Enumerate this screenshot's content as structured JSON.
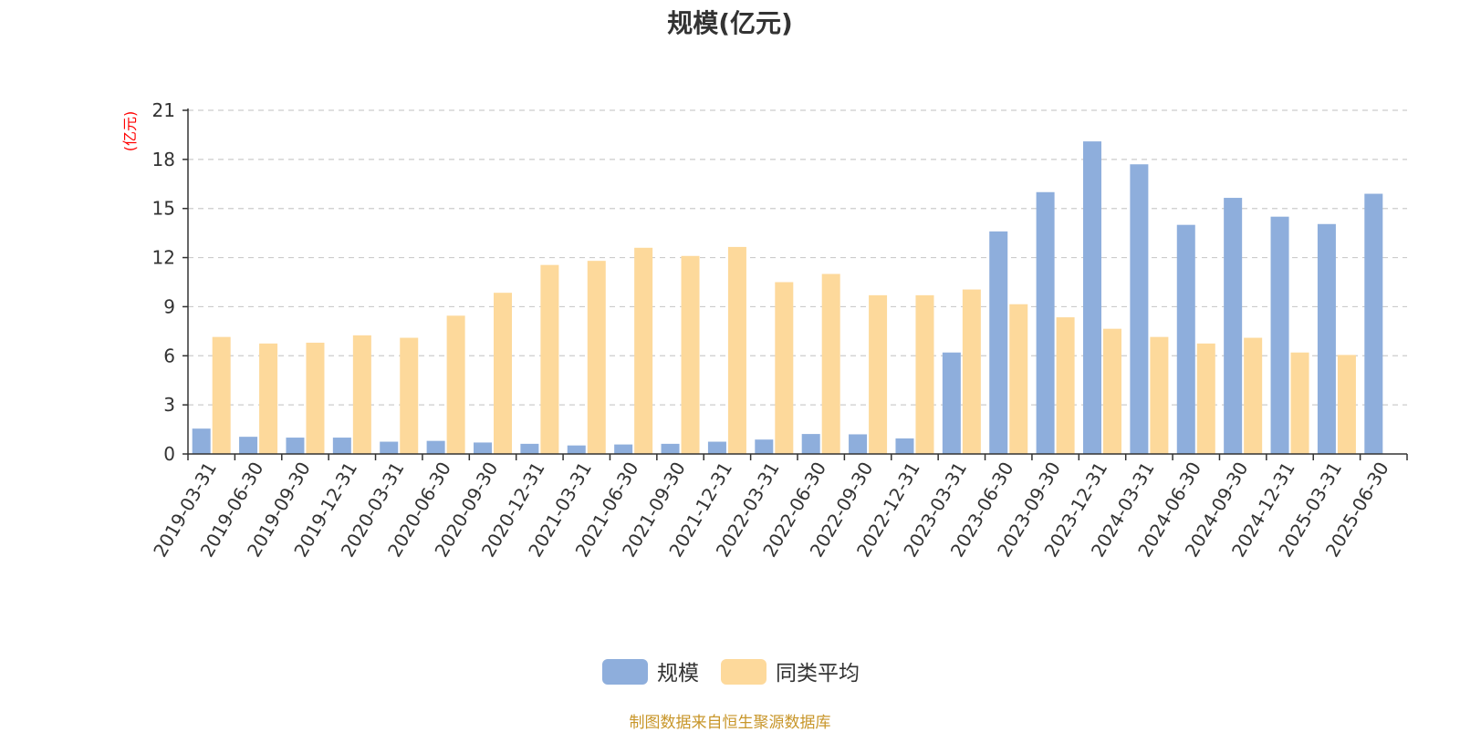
{
  "colors": {
    "series_0": "#8eaedc",
    "series_1": "#fdd99b",
    "unit_label": "#ff0000",
    "footer": "#c8962a",
    "axis": "#333333",
    "grid": "#cccccc"
  },
  "footer": {
    "source": "制图数据来自恒生聚源数据库"
  },
  "chart_data": {
    "type": "bar",
    "title": "规模(亿元)",
    "ylabel": "(亿元)",
    "xlabel": "",
    "ylim": [
      0,
      21
    ],
    "yticks": [
      0,
      3,
      6,
      9,
      12,
      15,
      18,
      21
    ],
    "grid": true,
    "legend_position": "bottom-center",
    "categories": [
      "2019-03-31",
      "2019-06-30",
      "2019-09-30",
      "2019-12-31",
      "2020-03-31",
      "2020-06-30",
      "2020-09-30",
      "2020-12-31",
      "2021-03-31",
      "2021-06-30",
      "2021-09-30",
      "2021-12-31",
      "2022-03-31",
      "2022-06-30",
      "2022-09-30",
      "2022-12-31",
      "2023-03-31",
      "2023-06-30",
      "2023-09-30",
      "2023-12-31",
      "2024-03-31",
      "2024-06-30",
      "2024-09-30",
      "2024-12-31",
      "2025-03-31",
      "2025-06-30"
    ],
    "series": [
      {
        "name": "规模",
        "values": [
          1.55,
          1.05,
          1.0,
          1.0,
          0.75,
          0.8,
          0.7,
          0.62,
          0.52,
          0.58,
          0.62,
          0.75,
          0.88,
          1.22,
          1.2,
          0.95,
          6.2,
          13.6,
          16.0,
          19.1,
          17.7,
          14.0,
          15.65,
          14.5,
          14.05,
          15.9
        ]
      },
      {
        "name": "同类平均",
        "values": [
          7.15,
          6.75,
          6.8,
          7.25,
          7.1,
          8.45,
          9.85,
          11.55,
          11.8,
          12.6,
          12.1,
          12.65,
          10.5,
          11.0,
          9.7,
          9.7,
          10.05,
          9.15,
          8.35,
          7.65,
          7.15,
          6.75,
          7.1,
          6.2,
          6.05,
          null
        ]
      }
    ]
  }
}
